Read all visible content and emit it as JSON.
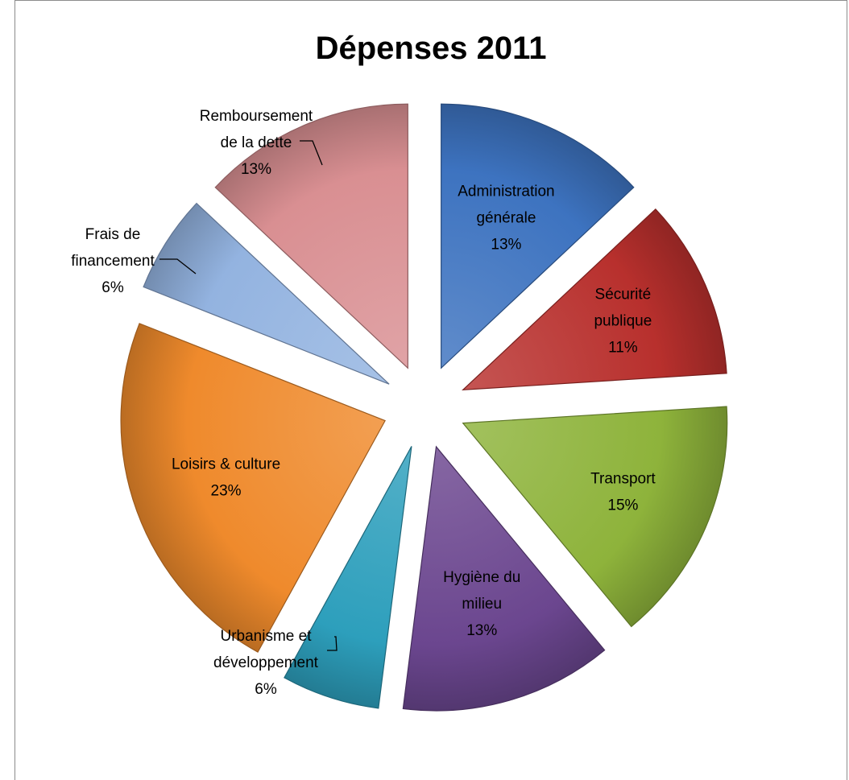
{
  "chart_data": {
    "type": "pie",
    "title": "Dépenses 2011",
    "exploded": true,
    "slices": [
      {
        "label_lines": [
          "Administration",
          "générale"
        ],
        "value": 13,
        "pct_label": "13%",
        "color": "#3d73c0",
        "label_position": "inside"
      },
      {
        "label_lines": [
          "Sécurité",
          "publique"
        ],
        "value": 11,
        "pct_label": "11%",
        "color": "#b8302d",
        "label_position": "inside"
      },
      {
        "label_lines": [
          "Transport"
        ],
        "value": 15,
        "pct_label": "15%",
        "color": "#8eb33b",
        "label_position": "inside"
      },
      {
        "label_lines": [
          "Hygiène du",
          "milieu"
        ],
        "value": 13,
        "pct_label": "13%",
        "color": "#6b468f",
        "label_position": "inside"
      },
      {
        "label_lines": [
          "Urbanisme et",
          "développement"
        ],
        "value": 6,
        "pct_label": "6%",
        "color": "#2d9fbc",
        "label_position": "outside"
      },
      {
        "label_lines": [
          "Loisirs & culture"
        ],
        "value": 23,
        "pct_label": "23%",
        "color": "#ef8a2c",
        "label_position": "inside"
      },
      {
        "label_lines": [
          "Frais de",
          "financement"
        ],
        "value": 6,
        "pct_label": "6%",
        "color": "#93b3e0",
        "label_position": "outside"
      },
      {
        "label_lines": [
          "Remboursement",
          "de la dette"
        ],
        "value": 13,
        "pct_label": "13%",
        "color": "#d98f92",
        "label_position": "outside"
      }
    ]
  }
}
